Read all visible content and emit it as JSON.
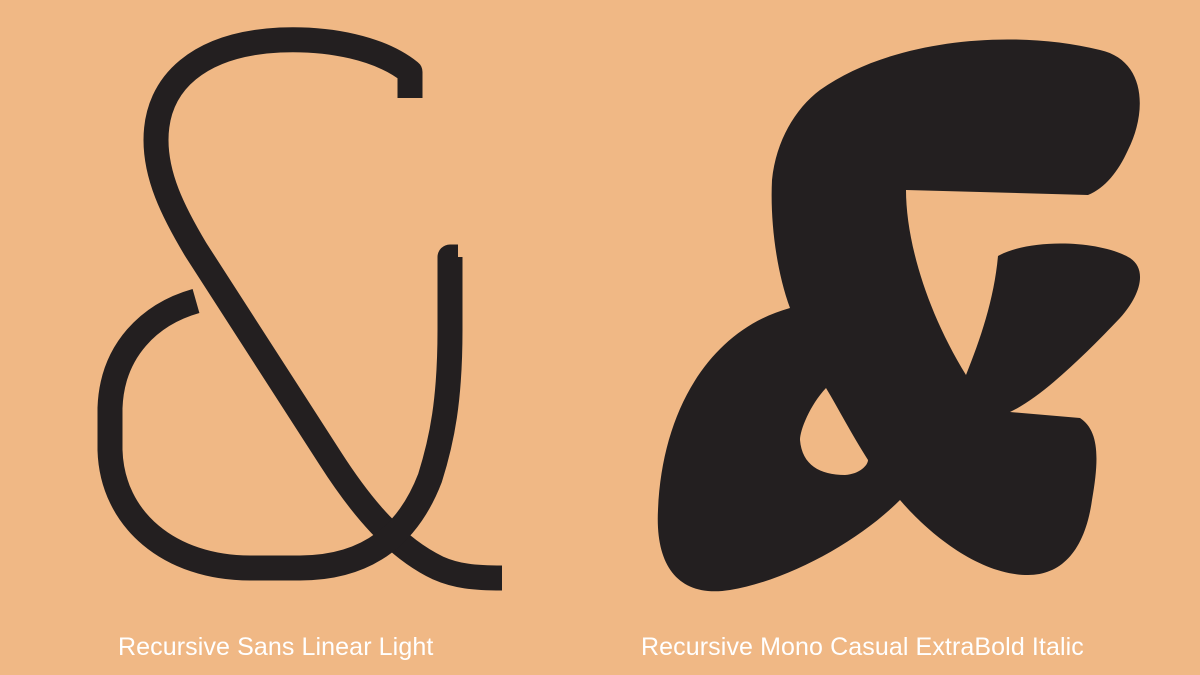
{
  "colors": {
    "background": "#F0B885",
    "glyph": "#231F20",
    "caption": "#FFFFFF"
  },
  "specimens": [
    {
      "glyph_name": "ampersand",
      "caption": "Recursive Sans Linear Light"
    },
    {
      "glyph_name": "ampersand",
      "caption": "Recursive Mono Casual ExtraBold Italic"
    }
  ]
}
